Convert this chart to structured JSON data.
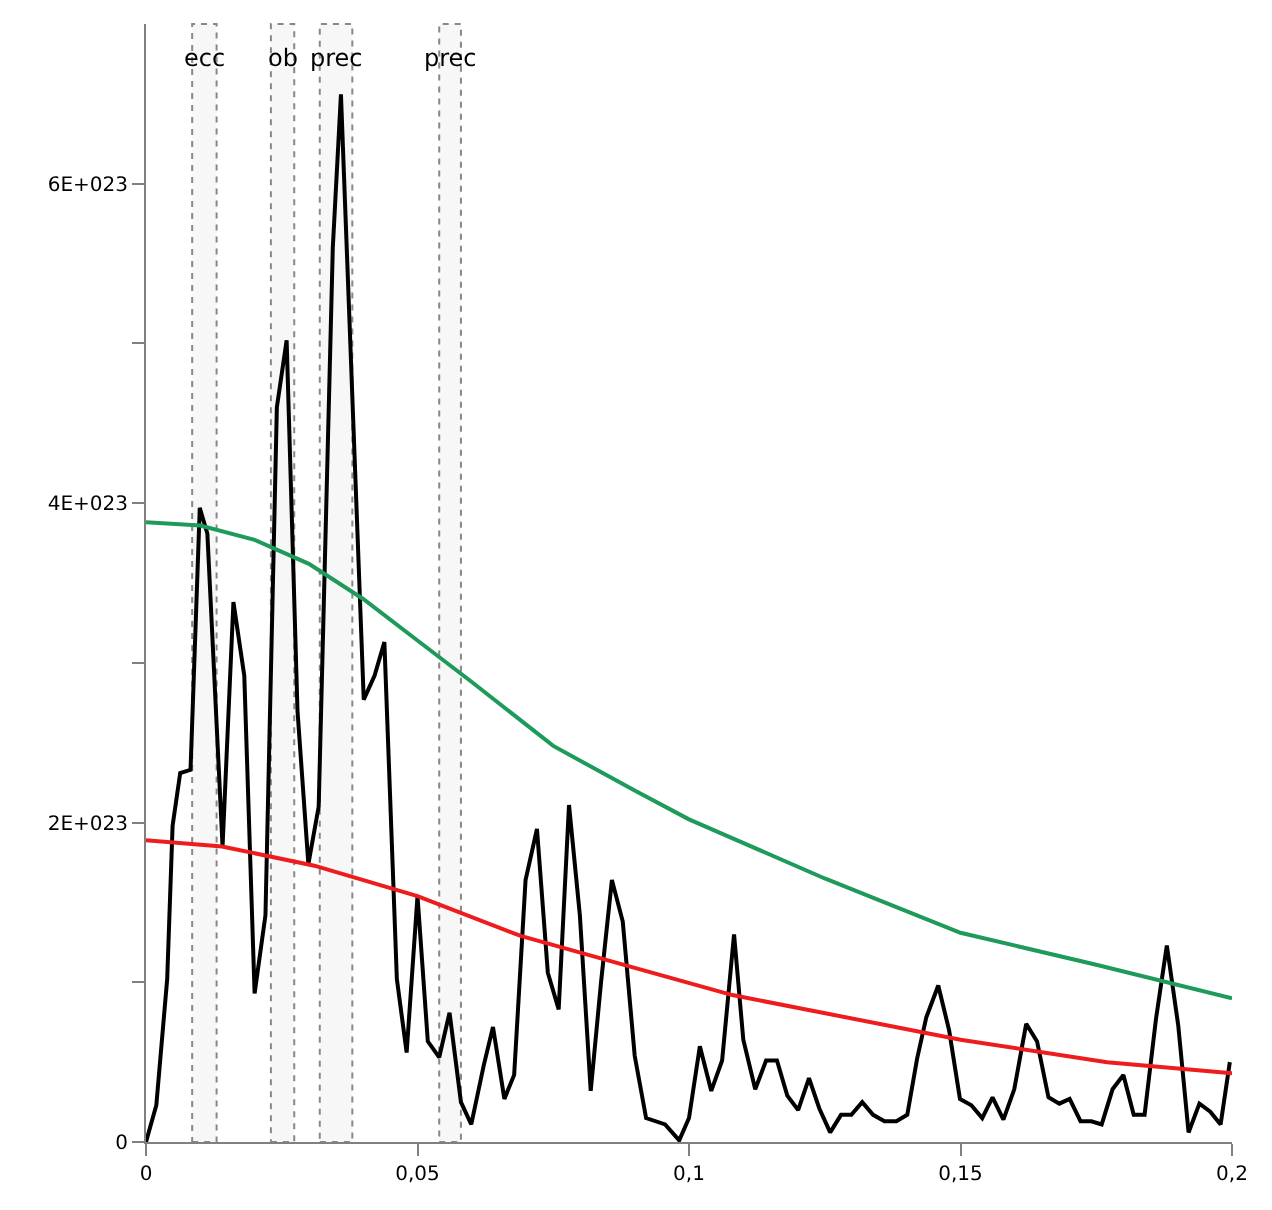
{
  "chart_data": {
    "type": "line",
    "xlim": [
      0,
      0.2
    ],
    "ylim": [
      0,
      7e+23
    ],
    "xticks": [
      {
        "value": 0,
        "label": "0"
      },
      {
        "value": 0.05,
        "label": "0,05"
      },
      {
        "value": 0.1,
        "label": "0,1"
      },
      {
        "value": 0.15,
        "label": "0,15"
      },
      {
        "value": 0.2,
        "label": "0,2"
      }
    ],
    "yticks": [
      {
        "value": 0,
        "label": "0"
      },
      {
        "value": 1e+23,
        "label": null
      },
      {
        "value": 2e+23,
        "label": "2E+023"
      },
      {
        "value": 3e+23,
        "label": null
      },
      {
        "value": 4e+23,
        "label": "4E+023"
      },
      {
        "value": 5e+23,
        "label": null
      },
      {
        "value": 6e+23,
        "label": "6E+023"
      }
    ],
    "grid": false,
    "marker": "none",
    "line_style": "solid",
    "series": [
      {
        "color": "#000000",
        "x": [
          0,
          0.0019,
          0.0039,
          0.0049,
          0.0063,
          0.0082,
          0.0099,
          0.0113,
          0.0141,
          0.0161,
          0.0181,
          0.02,
          0.022,
          0.0241,
          0.0259,
          0.0279,
          0.0299,
          0.0318,
          0.0344,
          0.0359,
          0.0401,
          0.0421,
          0.0439,
          0.0462,
          0.048,
          0.05,
          0.0519,
          0.054,
          0.0559,
          0.058,
          0.0599,
          0.0622,
          0.0639,
          0.066,
          0.0678,
          0.0699,
          0.072,
          0.074,
          0.076,
          0.0779,
          0.0799,
          0.0819,
          0.0838,
          0.0858,
          0.0878,
          0.09,
          0.0921,
          0.0956,
          0.0982,
          0.1,
          0.102,
          0.1041,
          0.1061,
          0.1083,
          0.11,
          0.1122,
          0.1142,
          0.1162,
          0.1181,
          0.1201,
          0.1221,
          0.124,
          0.126,
          0.128,
          0.1299,
          0.1319,
          0.1339,
          0.136,
          0.1382,
          0.1402,
          0.142,
          0.1437,
          0.1459,
          0.1479,
          0.1499,
          0.152,
          0.154,
          0.1559,
          0.1579,
          0.1599,
          0.1621,
          0.1641,
          0.1662,
          0.1682,
          0.1701,
          0.1721,
          0.1741,
          0.176,
          0.178,
          0.18,
          0.1819,
          0.1839,
          0.186,
          0.188,
          0.1901,
          0.192,
          0.194,
          0.196,
          0.1979,
          0.1996
        ],
        "values": [
          0,
          2.3e+22,
          1.02e+23,
          1.98e+23,
          2.31e+23,
          2.33e+23,
          3.97e+23,
          3.81e+23,
          1.85e+23,
          3.38e+23,
          2.92e+23,
          9.3e+22,
          1.42e+23,
          4.6e+23,
          5.02e+23,
          2.7e+23,
          1.74e+23,
          2.1e+23,
          5.6e+23,
          6.56e+23,
          2.77e+23,
          2.92e+23,
          3.13e+23,
          1.02e+23,
          5.6e+22,
          1.54e+23,
          6.3e+22,
          5.3e+22,
          8.1e+22,
          2.5e+22,
          1.1e+22,
          4.8e+22,
          7.2e+22,
          2.7e+22,
          4.2e+22,
          1.64e+23,
          1.96e+23,
          1.06e+23,
          8.3e+22,
          2.11e+23,
          1.42e+23,
          3.2e+22,
          1e+23,
          1.64e+23,
          1.38e+23,
          5.4e+22,
          1.5e+22,
          1.1e+22,
          1e+21,
          1.5e+22,
          6e+22,
          3.2e+22,
          5.1e+22,
          1.3e+23,
          6.4e+22,
          3.3e+22,
          5.1e+22,
          5.1e+22,
          2.9e+22,
          2e+22,
          4e+22,
          2.1e+22,
          6e+21,
          1.7e+22,
          1.7e+22,
          2.5e+22,
          1.7e+22,
          1.3e+22,
          1.3e+22,
          1.7e+22,
          5.2e+22,
          7.8e+22,
          9.8e+22,
          7e+22,
          2.7e+22,
          2.3e+22,
          1.5e+22,
          2.8e+22,
          1.4e+22,
          3.3e+22,
          7.4e+22,
          6.3e+22,
          2.8e+22,
          2.4e+22,
          2.7e+22,
          1.3e+22,
          1.3e+22,
          1.1e+22,
          3.3e+22,
          4.2e+22,
          1.7e+22,
          1.7e+22,
          7.7e+22,
          1.23e+23,
          7.3e+22,
          6e+21,
          2.4e+22,
          1.9e+22,
          1.1e+22,
          5e+22
        ]
      },
      {
        "color": "#1e9a5a",
        "x": [
          0,
          0.01,
          0.02,
          0.03,
          0.04,
          0.05,
          0.06,
          0.075,
          0.09,
          0.1,
          0.125,
          0.15,
          0.175,
          0.2
        ],
        "values": [
          3.88e+23,
          3.86e+23,
          3.77e+23,
          3.62e+23,
          3.4e+23,
          3.14e+23,
          2.88e+23,
          2.48e+23,
          2.2e+23,
          2.02e+23,
          1.65e+23,
          1.31e+23,
          1.11e+23,
          9e+22
        ]
      },
      {
        "color": "#ee1c1c",
        "x": [
          0,
          0.014,
          0.031,
          0.05,
          0.069,
          0.09,
          0.108,
          0.15,
          0.177,
          0.2
        ],
        "values": [
          1.89e+23,
          1.85e+23,
          1.73e+23,
          1.54e+23,
          1.29e+23,
          1.09e+23,
          9.2e+22,
          6.4e+22,
          5e+22,
          4.3e+22
        ]
      }
    ],
    "bands": [
      {
        "axis": "x",
        "from": 0.0085,
        "to": 0.013,
        "label": "ecc",
        "color": "#888888"
      },
      {
        "axis": "x",
        "from": 0.023,
        "to": 0.0273,
        "label": "ob",
        "color": "#888888"
      },
      {
        "axis": "x",
        "from": 0.032,
        "to": 0.038,
        "label": "prec",
        "color": "#888888"
      },
      {
        "axis": "x",
        "from": 0.054,
        "to": 0.058,
        "label": "prec",
        "color": "#888888"
      }
    ]
  }
}
